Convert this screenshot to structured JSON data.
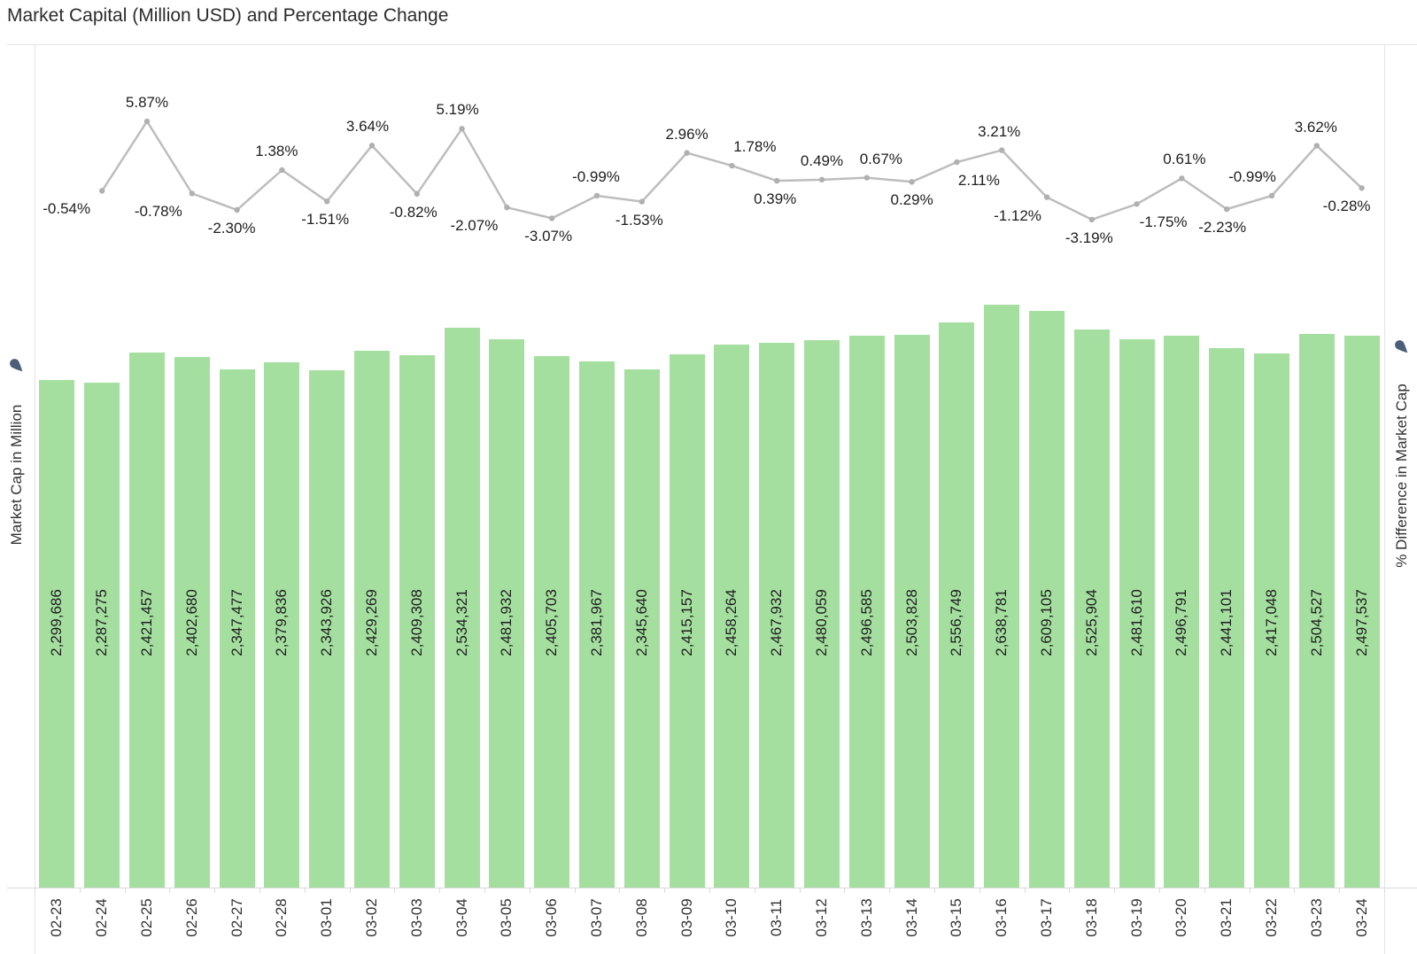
{
  "title": "Market Capital (Million USD) and Percentage Change",
  "left_axis": {
    "label": "Market Cap in Million",
    "icon": "pin-icon"
  },
  "right_axis": {
    "label": "% Difference in Market Cap",
    "icon": "pin-icon"
  },
  "colors": {
    "bar": "#a5dfa0",
    "line": "#bdbdbd",
    "marker": "#b0b0b0",
    "data_label": "#1e1e1e",
    "axis_text": "#333333",
    "border": "#e3e3e3",
    "axis_line": "#d9d9d9",
    "pin": "#4d5f78",
    "title": "#2b2b2b"
  },
  "chart_data": {
    "type": "combo",
    "title": "Market Capital (Million USD) and Percentage Change",
    "grid": false,
    "legend": "none",
    "categories": [
      "02-23",
      "02-24",
      "02-25",
      "02-26",
      "02-27",
      "02-28",
      "03-01",
      "03-02",
      "03-03",
      "03-04",
      "03-05",
      "03-06",
      "03-07",
      "03-08",
      "03-09",
      "03-10",
      "03-11",
      "03-12",
      "03-13",
      "03-14",
      "03-15",
      "03-16",
      "03-17",
      "03-18",
      "03-19",
      "03-20",
      "03-21",
      "03-22",
      "03-23",
      "03-24"
    ],
    "series": [
      {
        "name": "Market Cap in Million",
        "type": "bar",
        "axis": "left",
        "ylabel": "Market Cap in Million",
        "ylim": [
          0,
          2700000
        ],
        "values": [
          2299686,
          2287275,
          2421457,
          2402680,
          2347477,
          2379836,
          2343926,
          2429269,
          2409308,
          2534321,
          2481932,
          2405703,
          2381967,
          2345640,
          2415157,
          2458264,
          2467932,
          2480059,
          2496585,
          2503828,
          2556749,
          2638781,
          2609105,
          2525904,
          2481610,
          2496791,
          2441101,
          2417048,
          2504527,
          2497537
        ],
        "labels": [
          "2,299,686",
          "2,287,275",
          "2,421,457",
          "2,402,680",
          "2,347,477",
          "2,379,836",
          "2,343,926",
          "2,429,269",
          "2,409,308",
          "2,534,321",
          "2,481,932",
          "2,405,703",
          "2,381,967",
          "2,345,640",
          "2,415,157",
          "2,458,264",
          "2,467,932",
          "2,480,059",
          "2,496,585",
          "2,503,828",
          "2,556,749",
          "2,638,781",
          "2,609,105",
          "2,525,904",
          "2,481,610",
          "2,496,791",
          "2,441,101",
          "2,417,048",
          "2,504,527",
          "2,497,537"
        ]
      },
      {
        "name": "% Difference in Market Cap",
        "type": "line",
        "axis": "right",
        "ylabel": "% Difference in Market Cap",
        "ylim": [
          -4.6,
          6.3
        ],
        "categories": [
          "02-24",
          "02-25",
          "02-26",
          "02-27",
          "02-28",
          "03-01",
          "03-02",
          "03-03",
          "03-04",
          "03-05",
          "03-06",
          "03-07",
          "03-08",
          "03-09",
          "03-10",
          "03-11",
          "03-12",
          "03-13",
          "03-14",
          "03-15",
          "03-16",
          "03-17",
          "03-18",
          "03-19",
          "03-20",
          "03-21",
          "03-22",
          "03-23",
          "03-24"
        ],
        "values": [
          -0.54,
          5.87,
          -0.78,
          -2.3,
          1.38,
          -1.51,
          3.64,
          -0.82,
          5.19,
          -2.07,
          -3.07,
          -0.99,
          -1.53,
          2.96,
          1.78,
          0.39,
          0.49,
          0.67,
          0.29,
          2.11,
          3.21,
          -1.12,
          -3.19,
          -1.75,
          0.61,
          -2.23,
          -0.99,
          3.62,
          -0.28
        ],
        "labels": [
          "-0.54%",
          "5.87%",
          "-0.78%",
          "-2.30%",
          "1.38%",
          "-1.51%",
          "3.64%",
          "-0.82%",
          "5.19%",
          "-2.07%",
          "-3.07%",
          "-0.99%",
          "-1.53%",
          "2.96%",
          "1.78%",
          "0.39%",
          "0.49%",
          "0.67%",
          "0.29%",
          "2.11%",
          "3.21%",
          "-1.12%",
          "-3.19%",
          "-1.75%",
          "0.61%",
          "-2.23%",
          "-0.99%",
          "3.62%",
          "-0.28%"
        ],
        "label_sides": [
          "below",
          "above",
          "below",
          "below",
          "above",
          "below",
          "above",
          "below",
          "above",
          "below",
          "below",
          "above",
          "below",
          "above",
          "above",
          "below",
          "above",
          "above",
          "below",
          "below",
          "above",
          "below",
          "below",
          "below",
          "above",
          "below",
          "above",
          "above",
          "below"
        ],
        "label_dx": [
          -40,
          0,
          -38,
          -6,
          -6,
          -2,
          -5,
          -4,
          -5,
          -37,
          -4,
          -1,
          -3,
          0,
          26,
          -2,
          0,
          16,
          0,
          25,
          -3,
          -33,
          -3,
          30,
          3,
          -5,
          -22,
          -1,
          -17
        ]
      }
    ]
  }
}
